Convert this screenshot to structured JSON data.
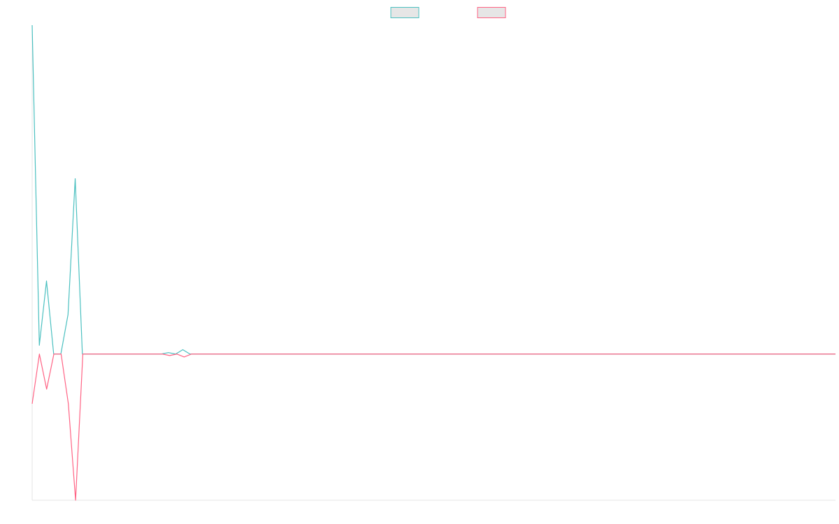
{
  "chart_data": {
    "type": "line",
    "legend": "top",
    "grid": false,
    "ylim": [
      -100,
      225
    ],
    "series": [
      {
        "color": "#4bc0c0",
        "values": [
          225,
          6,
          50,
          0,
          0,
          27,
          120,
          0,
          0,
          0,
          0,
          0,
          0,
          0,
          0,
          0,
          0,
          0,
          0,
          1,
          0,
          3,
          0,
          0,
          0,
          0,
          0,
          0,
          0,
          0,
          0,
          0,
          0,
          0,
          0,
          0,
          0,
          0,
          0,
          0,
          0,
          0,
          0,
          0,
          0,
          0,
          0,
          0,
          0,
          0,
          0,
          0,
          0,
          0,
          0,
          0,
          0,
          0,
          0,
          0,
          0,
          0,
          0,
          0,
          0,
          0,
          0,
          0,
          0,
          0,
          0,
          0,
          0,
          0,
          0,
          0,
          0,
          0,
          0,
          0,
          0,
          0,
          0,
          0,
          0,
          0,
          0,
          0,
          0,
          0,
          0,
          0,
          0,
          0,
          0,
          0,
          0,
          0,
          0,
          0,
          0,
          0,
          0,
          0,
          0,
          0,
          0,
          0,
          0,
          0,
          0,
          0,
          0
        ]
      },
      {
        "color": "#ff6384",
        "values": [
          -34,
          0,
          -24,
          0,
          0,
          -34,
          -100,
          0,
          0,
          0,
          0,
          0,
          0,
          0,
          0,
          0,
          0,
          0,
          0,
          -1,
          0,
          -2,
          0,
          0,
          0,
          0,
          0,
          0,
          0,
          0,
          0,
          0,
          0,
          0,
          0,
          0,
          0,
          0,
          0,
          0,
          0,
          0,
          0,
          0,
          0,
          0,
          0,
          0,
          0,
          0,
          0,
          0,
          0,
          0,
          0,
          0,
          0,
          0,
          0,
          0,
          0,
          0,
          0,
          0,
          0,
          0,
          0,
          0,
          0,
          0,
          0,
          0,
          0,
          0,
          0,
          0,
          0,
          0,
          0,
          0,
          0,
          0,
          0,
          0,
          0,
          0,
          0,
          0,
          0,
          0,
          0,
          0,
          0,
          0,
          0,
          0,
          0,
          0,
          0,
          0,
          0,
          0,
          0,
          0,
          0,
          0,
          0,
          0,
          0,
          0,
          0,
          0
        ]
      }
    ]
  }
}
